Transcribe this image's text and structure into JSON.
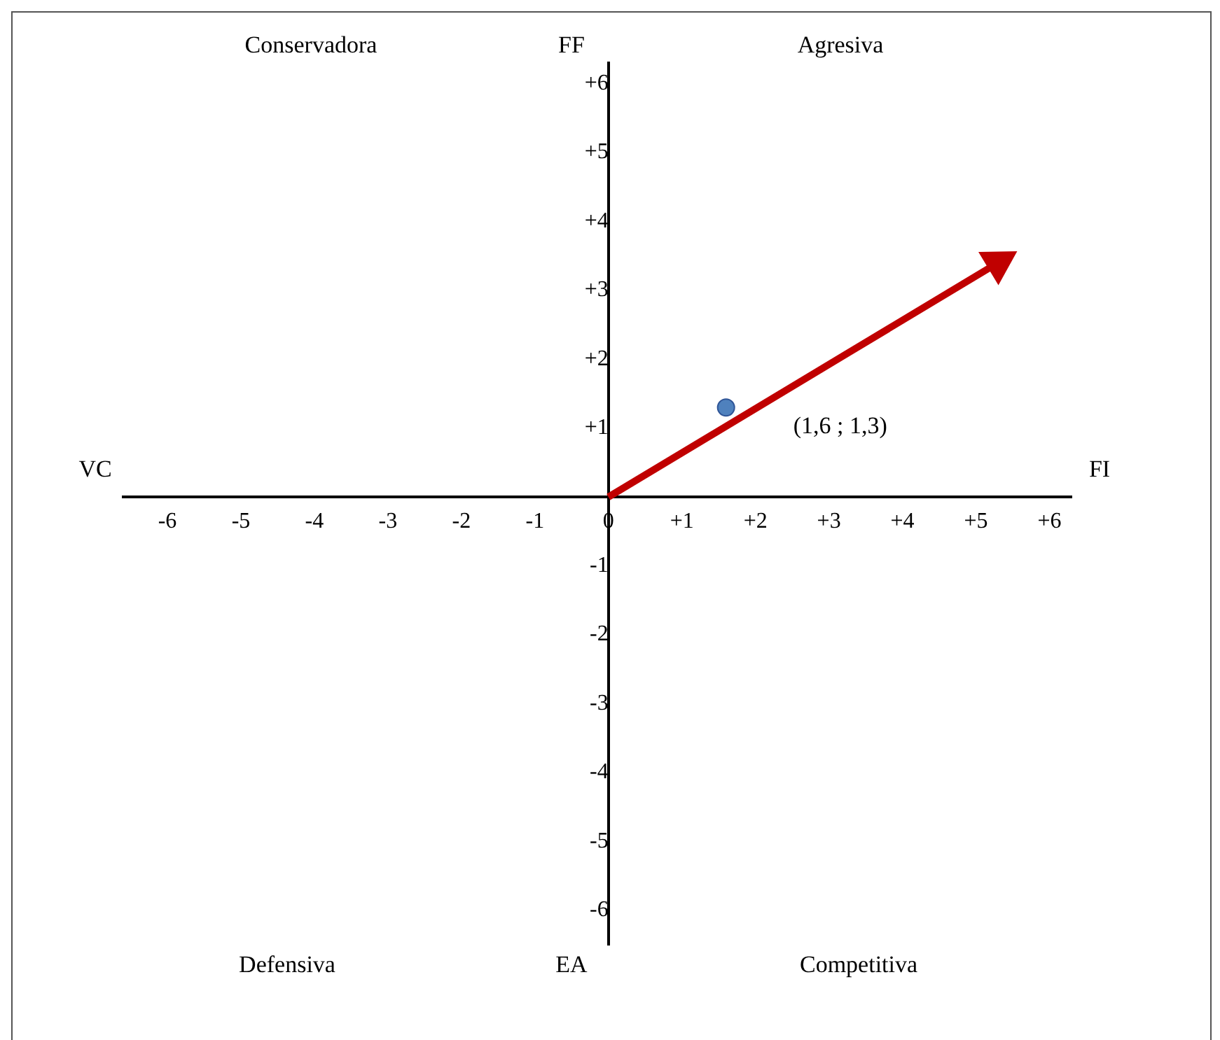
{
  "chart_data": {
    "type": "scatter",
    "xlim": [
      -6.6,
      6.3
    ],
    "ylim": [
      -6.5,
      6.3
    ],
    "xticks": [
      -6,
      -5,
      -4,
      -3,
      -2,
      -1,
      0,
      {
        "value": 1,
        "label": "+1"
      },
      {
        "value": 2,
        "label": "+2"
      },
      {
        "value": 3,
        "label": "+3"
      },
      {
        "value": 4,
        "label": "+4"
      },
      {
        "value": 5,
        "label": "+5"
      },
      {
        "value": 6,
        "label": "+6"
      }
    ],
    "yticks": [
      -6,
      -5,
      -4,
      -3,
      -2,
      -1,
      {
        "value": 1,
        "label": "+1"
      },
      {
        "value": 2,
        "label": "+2"
      },
      {
        "value": 3,
        "label": "+3"
      },
      {
        "value": 4,
        "label": "+4"
      },
      {
        "value": 5,
        "label": "+5"
      },
      {
        "value": 6,
        "label": "+6"
      }
    ],
    "grid": false,
    "series": [
      {
        "type": "line",
        "x": [
          0,
          5.3
        ],
        "values": [
          0,
          3.4
        ],
        "color": "#c00000",
        "marker": "triangle"
      },
      {
        "type": "scatter",
        "x": [
          1.6
        ],
        "values": [
          1.3
        ],
        "color": "#4f81bd",
        "marker": "circle"
      }
    ],
    "annotations": [
      "Conservadora",
      "FF",
      "Agresiva",
      "VC",
      "FI",
      "Defensiva",
      "EA",
      "Competitiva",
      {
        "text": "(1,6 ; 1,3)",
        "x": 1.6,
        "y": 1.3
      }
    ]
  }
}
